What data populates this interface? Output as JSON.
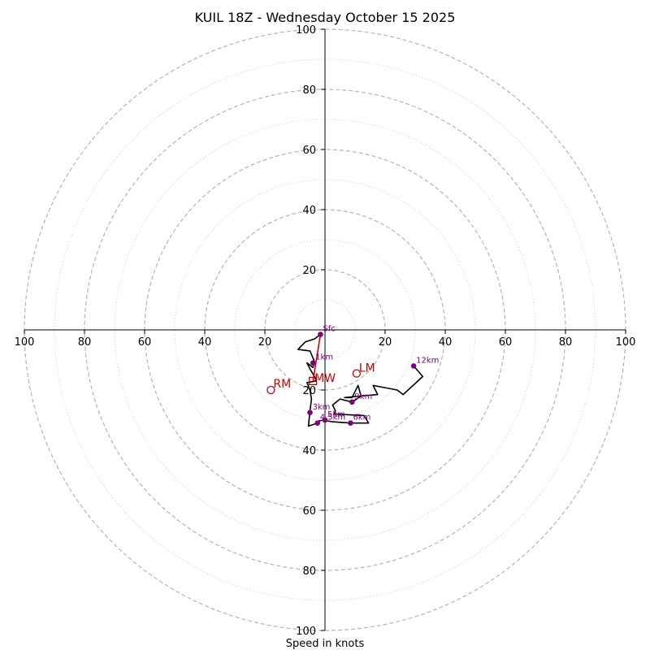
{
  "chart_data": {
    "type": "hodograph",
    "title": "KUIL 18Z - Wednesday October 15 2025",
    "xlabel": "Speed in knots",
    "max_speed": 100,
    "ring_step_major": 20,
    "ring_step_minor": 10,
    "ticks": [
      20,
      40,
      60,
      80,
      100
    ],
    "tick_labels": {
      "x_left": [
        "100",
        "80",
        "60",
        "40",
        "20"
      ],
      "x_right": [
        "20",
        "40",
        "60",
        "80",
        "100"
      ],
      "y_top": [
        "100",
        "80",
        "60",
        "40",
        "20"
      ],
      "y_bottom": [
        "20",
        "40",
        "60",
        "80",
        "100"
      ]
    },
    "profile": [
      {
        "u": -1.5,
        "v": -1.5
      },
      {
        "u": -3.5,
        "v": -3.0
      },
      {
        "u": -6.5,
        "v": -4.0
      },
      {
        "u": -9.0,
        "v": -6.5
      },
      {
        "u": -5.0,
        "v": -7.0
      },
      {
        "u": -3.5,
        "v": -10.5
      },
      {
        "u": -4.0,
        "v": -12.5
      },
      {
        "u": -6.0,
        "v": -11.0
      },
      {
        "u": -5.0,
        "v": -13.0
      },
      {
        "u": -3.5,
        "v": -15.5
      },
      {
        "u": -3.0,
        "v": -17.0
      },
      {
        "u": -6.0,
        "v": -17.5
      },
      {
        "u": -5.0,
        "v": -20.0
      },
      {
        "u": -4.5,
        "v": -23.0
      },
      {
        "u": -5.0,
        "v": -27.0
      },
      {
        "u": -5.5,
        "v": -32.0
      },
      {
        "u": -2.5,
        "v": -31.0
      },
      {
        "u": -3.0,
        "v": -30.5
      },
      {
        "u": -0.5,
        "v": -30.0
      },
      {
        "u": 2.0,
        "v": -30.5
      },
      {
        "u": 8.5,
        "v": -31.0
      },
      {
        "u": 14.5,
        "v": -31.0
      },
      {
        "u": 13.0,
        "v": -28.5
      },
      {
        "u": 3.0,
        "v": -28.0
      },
      {
        "u": 3.5,
        "v": -27.0
      },
      {
        "u": 2.5,
        "v": -25.0
      },
      {
        "u": 5.0,
        "v": -23.0
      },
      {
        "u": 9.0,
        "v": -24.0
      },
      {
        "u": 12.0,
        "v": -22.0
      },
      {
        "u": 11.0,
        "v": -18.5
      },
      {
        "u": 9.0,
        "v": -22.5
      },
      {
        "u": 6.5,
        "v": -22.5
      },
      {
        "u": 17.5,
        "v": -21.5
      },
      {
        "u": 16.0,
        "v": -18.5
      },
      {
        "u": 24.0,
        "v": -20.0
      },
      {
        "u": 26.0,
        "v": -21.5
      },
      {
        "u": 32.5,
        "v": -15.5
      },
      {
        "u": 29.5,
        "v": -12.0
      }
    ],
    "height_markers": [
      {
        "label": "Sfc",
        "u": -1.5,
        "v": -1.5
      },
      {
        "label": "1km",
        "u": -4.0,
        "v": -11.0
      },
      {
        "label": "3km",
        "u": -5.0,
        "v": -27.5
      },
      {
        "label": "4.5km",
        "u": -2.5,
        "v": -31.0
      },
      {
        "label": "5km",
        "u": 0.0,
        "v": -30.0
      },
      {
        "label": "6km",
        "u": 8.5,
        "v": -31.0
      },
      {
        "label": "9km",
        "u": 9.0,
        "v": -24.0
      },
      {
        "label": "12km",
        "u": 29.5,
        "v": -12.0
      }
    ],
    "storm_motion": {
      "mean_wind_label": "MW",
      "mean_wind": {
        "u": -4.0,
        "v": -17.0
      },
      "surface": {
        "u": -1.5,
        "v": -1.5
      },
      "right_mover_label": "RM",
      "right_mover": {
        "u": -18.0,
        "v": -20.0
      },
      "left_mover_label": "LM",
      "left_mover": {
        "u": 10.5,
        "v": -14.5
      }
    },
    "colors": {
      "profile": "#000000",
      "markers": "#800080",
      "storm": "#cc0000",
      "grid_major": "#b4b4b4",
      "grid_minor": "#cccccc",
      "axis": "#000000"
    }
  }
}
